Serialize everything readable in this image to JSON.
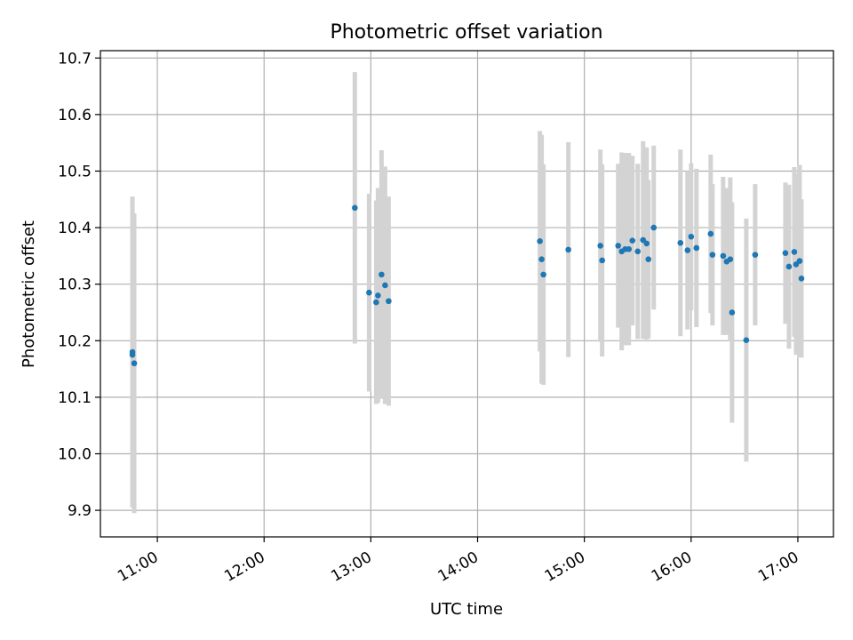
{
  "chart_data": {
    "type": "scatter",
    "title": "Photometric offset variation",
    "xlabel": "UTC time",
    "ylabel": "Photometric offset",
    "xlim": [
      "10:28",
      "17:20"
    ],
    "ylim": [
      9.853,
      10.713
    ],
    "x_ticks": [
      "11:00",
      "12:00",
      "13:00",
      "14:00",
      "15:00",
      "16:00",
      "17:00"
    ],
    "y_ticks": [
      "9.9",
      "10.0",
      "10.1",
      "10.2",
      "10.3",
      "10.4",
      "10.5",
      "10.6",
      "10.7"
    ],
    "grid": true,
    "colors": {
      "points": "#1f77b4",
      "error_bars": "#d3d3d3",
      "grid": "#b0b0b0"
    },
    "series": [
      {
        "x": [
          "10:46",
          "10:46",
          "10:47",
          "12:51",
          "12:59",
          "13:03",
          "13:04",
          "13:06",
          "13:08",
          "13:10",
          "14:35",
          "14:36",
          "14:37",
          "14:51",
          "15:09",
          "15:10",
          "15:19",
          "15:21",
          "15:23",
          "15:25",
          "15:27",
          "15:30",
          "15:33",
          "15:35",
          "15:36",
          "15:39",
          "15:54",
          "15:58",
          "16:00",
          "16:03",
          "16:11",
          "16:12",
          "16:18",
          "16:20",
          "16:22",
          "16:23",
          "16:31",
          "16:36",
          "16:53",
          "16:55",
          "16:58",
          "16:59",
          "17:01",
          "17:02"
        ],
        "y": [
          10.18,
          10.175,
          10.16,
          10.435,
          10.285,
          10.268,
          10.28,
          10.317,
          10.298,
          10.27,
          10.376,
          10.344,
          10.317,
          10.361,
          10.368,
          10.342,
          10.368,
          10.358,
          10.362,
          10.362,
          10.377,
          10.358,
          10.378,
          10.372,
          10.344,
          10.4,
          10.373,
          10.36,
          10.384,
          10.364,
          10.389,
          10.352,
          10.35,
          10.34,
          10.344,
          10.25,
          10.201,
          10.352,
          10.355,
          10.331,
          10.357,
          10.335,
          10.341,
          10.31
        ],
        "err": [
          0.275,
          0.26,
          0.265,
          0.24,
          0.175,
          0.18,
          0.19,
          0.22,
          0.21,
          0.185,
          0.195,
          0.22,
          0.195,
          0.19,
          0.17,
          0.17,
          0.145,
          0.175,
          0.17,
          0.17,
          0.15,
          0.155,
          0.175,
          0.17,
          0.14,
          0.145,
          0.165,
          0.14,
          0.13,
          0.14,
          0.14,
          0.125,
          0.14,
          0.13,
          0.145,
          0.195,
          0.215,
          0.125,
          0.125,
          0.145,
          0.15,
          0.16,
          0.17,
          0.14
        ]
      }
    ]
  }
}
